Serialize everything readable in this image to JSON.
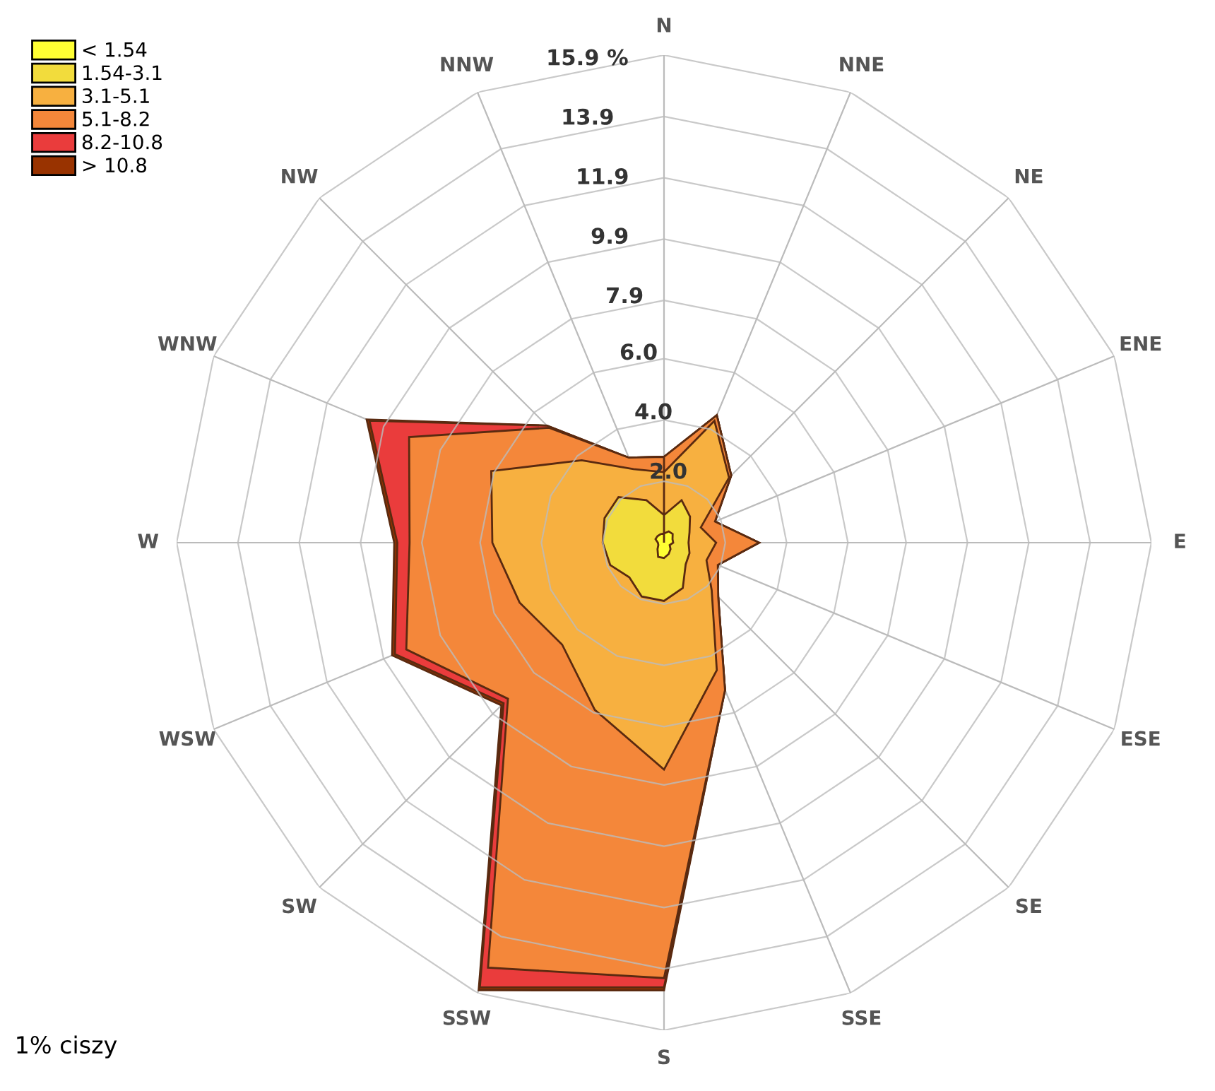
{
  "chart_data": {
    "type": "radar",
    "categories": [
      "N",
      "NNE",
      "NE",
      "ENE",
      "E",
      "ESE",
      "SE",
      "SSE",
      "S",
      "SSW",
      "SW",
      "WSW",
      "W",
      "WNW",
      "NW",
      "NNW"
    ],
    "series": [
      {
        "name": "< 1.54",
        "color": "#ffff33",
        "values": [
          0.3,
          0.4,
          0.4,
          0.3,
          0.3,
          0.2,
          0.3,
          0.4,
          0.5,
          0.5,
          0.3,
          0.2,
          0.2,
          0.3,
          0.3,
          0.3
        ]
      },
      {
        "name": "1.54-3.1",
        "color": "#f2dc3c",
        "values": [
          0.9,
          1.5,
          1.2,
          0.9,
          0.8,
          0.9,
          1.0,
          1.6,
          1.9,
          1.9,
          1.6,
          1.9,
          2.0,
          2.1,
          2.1,
          1.5
        ]
      },
      {
        "name": "3.1-5.1",
        "color": "#f7b040",
        "values": [
          2.3,
          4.3,
          3.0,
          1.3,
          1.7,
          1.5,
          2.2,
          4.5,
          7.4,
          5.9,
          4.7,
          5.1,
          5.6,
          6.1,
          3.8,
          2.6
        ]
      },
      {
        "name": "5.1-8.2",
        "color": "#f4873a",
        "values": [
          2.8,
          4.5,
          3.1,
          1.8,
          3.1,
          1.9,
          2.5,
          5.2,
          14.2,
          15.0,
          7.2,
          9.1,
          8.3,
          9.0,
          5.3,
          3.0
        ]
      },
      {
        "name": "8.2-10.8",
        "color": "#ea3c3c",
        "values": [
          2.8,
          4.5,
          3.1,
          1.8,
          3.1,
          1.9,
          2.5,
          5.2,
          14.5,
          15.7,
          7.4,
          9.5,
          8.7,
          10.4,
          5.4,
          3.0
        ]
      },
      {
        "name": "> 10.8",
        "color": "#993300",
        "values": [
          2.8,
          4.5,
          3.1,
          1.8,
          3.1,
          1.9,
          2.5,
          5.2,
          14.6,
          15.8,
          7.5,
          9.6,
          8.8,
          10.5,
          5.4,
          3.0
        ]
      }
    ],
    "ylim": [
      0,
      15.9
    ],
    "yticks": [
      {
        "value": 2,
        "label": "2.0"
      },
      {
        "value": 4,
        "label": "4.0"
      },
      {
        "value": 6,
        "label": "6.0"
      },
      7.9,
      9.9,
      11.9,
      13.9,
      {
        "value": 15.9,
        "label": "15.9 %"
      }
    ],
    "grid": true,
    "legend": "top left",
    "annotations": [
      "1% ciszy"
    ]
  }
}
